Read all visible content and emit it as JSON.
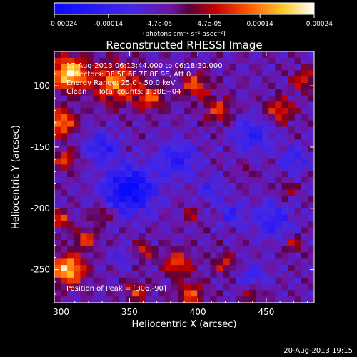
{
  "chart_data": {
    "type": "heatmap",
    "title": "Reconstructed RHESSI Image",
    "xlabel": "Heliocentric X (arcsec)",
    "ylabel": "Heliocentric Y (arcsec)",
    "xlim": [
      295,
      485
    ],
    "ylim": [
      -277,
      -72
    ],
    "x_ticks": [
      "300",
      "350",
      "400",
      "450"
    ],
    "x_tick_values": [
      300,
      350,
      400,
      450
    ],
    "y_ticks": [
      "-100",
      "-150",
      "-200",
      "-250"
    ],
    "y_tick_values": [
      -100,
      -150,
      -200,
      -250
    ],
    "colorbar": {
      "min": -0.00024,
      "max": 0.00024,
      "labels": [
        "-0.00024",
        "-0.00014",
        "-4.7e-05",
        "4.7e-05",
        "0.00014",
        "0.00024"
      ],
      "label_values": [
        -0.00024,
        -0.00014,
        -4.7e-05,
        4.7e-05,
        0.00014,
        0.00024
      ],
      "unit_label": "(photons cm⁻² s⁻¹ asec⁻²)"
    },
    "annotations": [
      "17-Aug-2013 06:13:44.000 to 06:18:30.000",
      "Detectors: 3F 5F 6F 7F 8F 9F, Att 0",
      "Energy Range: 25.0 - 50.0 keV",
      "Clean     Total counts: 1.38E+04"
    ],
    "peak_label": "Position of Peak = [306,-90]",
    "peak": [
      306,
      -90
    ],
    "hot_regions": [
      {
        "x": 306,
        "y": -90,
        "r": 13,
        "v": 0.00024
      },
      {
        "x": 300,
        "y": -130,
        "r": 10,
        "v": 0.00018
      },
      {
        "x": 303,
        "y": -160,
        "r": 8,
        "v": 0.00012
      },
      {
        "x": 340,
        "y": -98,
        "r": 16,
        "v": 0.00016
      },
      {
        "x": 365,
        "y": -110,
        "r": 10,
        "v": 0.00013
      },
      {
        "x": 398,
        "y": -100,
        "r": 10,
        "v": 0.00013
      },
      {
        "x": 415,
        "y": -120,
        "r": 10,
        "v": 0.00011
      },
      {
        "x": 460,
        "y": -120,
        "r": 10,
        "v": 0.00012
      },
      {
        "x": 478,
        "y": -95,
        "r": 9,
        "v": 0.0001
      },
      {
        "x": 305,
        "y": -250,
        "r": 12,
        "v": 0.00022
      },
      {
        "x": 318,
        "y": -225,
        "r": 8,
        "v": 0.00012
      },
      {
        "x": 300,
        "y": -210,
        "r": 7,
        "v": 0.00012
      },
      {
        "x": 330,
        "y": -205,
        "r": 7,
        "v": 9e-05
      },
      {
        "x": 360,
        "y": -235,
        "r": 7,
        "v": 0.0001
      },
      {
        "x": 385,
        "y": -245,
        "r": 10,
        "v": 0.00013
      },
      {
        "x": 395,
        "y": -270,
        "r": 10,
        "v": 0.00012
      },
      {
        "x": 355,
        "y": -268,
        "r": 8,
        "v": 0.0001
      },
      {
        "x": 420,
        "y": -245,
        "r": 8,
        "v": 9e-05
      },
      {
        "x": 440,
        "y": -270,
        "r": 7,
        "v": 8e-05
      },
      {
        "x": 470,
        "y": -230,
        "r": 7,
        "v": 7e-05
      },
      {
        "x": 395,
        "y": -205,
        "r": 6,
        "v": 6e-05
      },
      {
        "x": 465,
        "y": -185,
        "r": 6,
        "v": 7e-05
      },
      {
        "x": 435,
        "y": -170,
        "r": 5,
        "v": 5e-05
      }
    ],
    "cold_regions": [
      {
        "x": 350,
        "y": -185,
        "r": 18,
        "v": -0.00022
      },
      {
        "x": 330,
        "y": -150,
        "r": 12,
        "v": -0.00012
      },
      {
        "x": 385,
        "y": -160,
        "r": 14,
        "v": -0.00012
      },
      {
        "x": 440,
        "y": -140,
        "r": 14,
        "v": -0.00011
      },
      {
        "x": 470,
        "y": -160,
        "r": 10,
        "v": -0.0001
      },
      {
        "x": 455,
        "y": -210,
        "r": 14,
        "v": -0.00011
      },
      {
        "x": 425,
        "y": -205,
        "r": 9,
        "v": -9e-05
      },
      {
        "x": 410,
        "y": -185,
        "r": 10,
        "v": -8e-05
      },
      {
        "x": 440,
        "y": -255,
        "r": 10,
        "v": -9e-05
      },
      {
        "x": 345,
        "y": -240,
        "r": 8,
        "v": -7e-05
      }
    ],
    "background_value": -4e-05
  },
  "footer_date": "20-Aug-2013 19:15"
}
